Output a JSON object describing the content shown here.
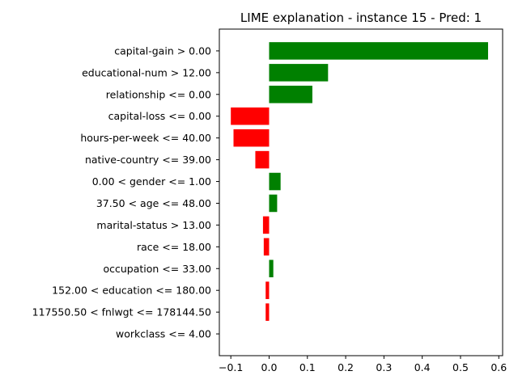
{
  "chart_data": {
    "type": "bar",
    "orientation": "horizontal",
    "title": "LIME explanation - instance 15 - Pred: 1",
    "xlabel": "",
    "ylabel": "",
    "xlim": [
      -0.13,
      0.61
    ],
    "xticks": [
      -0.1,
      0.0,
      0.1,
      0.2,
      0.3,
      0.4,
      0.5,
      0.6
    ],
    "xtick_labels": [
      "−0.1",
      "0.0",
      "0.1",
      "0.2",
      "0.3",
      "0.4",
      "0.5",
      "0.6"
    ],
    "grid": false,
    "positive_color": "#008000",
    "negative_color": "#ff0000",
    "categories": [
      "capital-gain > 0.00",
      "educational-num > 12.00",
      "relationship <= 0.00",
      "capital-loss <= 0.00",
      "hours-per-week <= 40.00",
      "native-country <= 39.00",
      "0.00 < gender <= 1.00",
      "37.50 < age <= 48.00",
      "marital-status > 13.00",
      "race <= 18.00",
      "occupation <= 33.00",
      "152.00 < education <= 180.00",
      "117550.50 < fnlwgt <= 178144.50",
      "workclass <= 4.00"
    ],
    "values": [
      0.572,
      0.154,
      0.113,
      -0.1,
      -0.093,
      -0.036,
      0.03,
      0.021,
      -0.016,
      -0.014,
      0.011,
      -0.009,
      -0.009,
      0.0
    ]
  }
}
